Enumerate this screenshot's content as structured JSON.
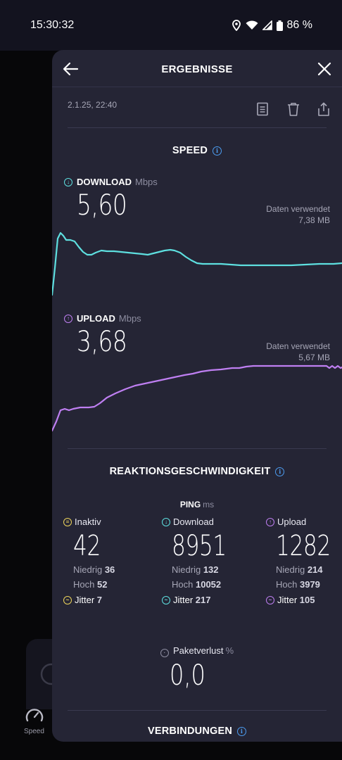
{
  "status_bar": {
    "time": "15:30:32",
    "battery": "86 %"
  },
  "background_app": {
    "speed_label": "Speed"
  },
  "header": {
    "title": "ERGEBNISSE"
  },
  "result": {
    "date": "2.1.25, 22:40"
  },
  "speed_section": {
    "title": "SPEED"
  },
  "download": {
    "label": "DOWNLOAD",
    "unit": "Mbps",
    "value": "5,60",
    "data_used_label": "Daten verwendet",
    "data_used_value": "7,38 MB"
  },
  "upload": {
    "label": "UPLOAD",
    "unit": "Mbps",
    "value": "3,68",
    "data_used_label": "Daten verwendet",
    "data_used_value": "5,67 MB"
  },
  "responsiveness": {
    "title": "REAKTIONSGESCHWINDIGKEIT"
  },
  "ping": {
    "title": "PING",
    "unit": "ms",
    "idle": {
      "label": "Inaktiv",
      "value": "42",
      "low_label": "Niedrig",
      "low": "36",
      "high_label": "Hoch",
      "high": "52",
      "jitter_label": "Jitter",
      "jitter": "7"
    },
    "download": {
      "label": "Download",
      "value": "8951",
      "low_label": "Niedrig",
      "low": "132",
      "high_label": "Hoch",
      "high": "10052",
      "jitter_label": "Jitter",
      "jitter": "217"
    },
    "upload": {
      "label": "Upload",
      "value": "1282",
      "low_label": "Niedrig",
      "low": "214",
      "high_label": "Hoch",
      "high": "3979",
      "jitter_label": "Jitter",
      "jitter": "105"
    }
  },
  "packet_loss": {
    "label": "Paketverlust",
    "unit": "%",
    "value": "0,0"
  },
  "connections": {
    "title": "VERBINDUNGEN"
  },
  "colors": {
    "download": "#5ee0e0",
    "upload": "#bf7ff2",
    "idle": "#ecd35a",
    "info": "#4c9cf0",
    "sheet": "#252535"
  }
}
